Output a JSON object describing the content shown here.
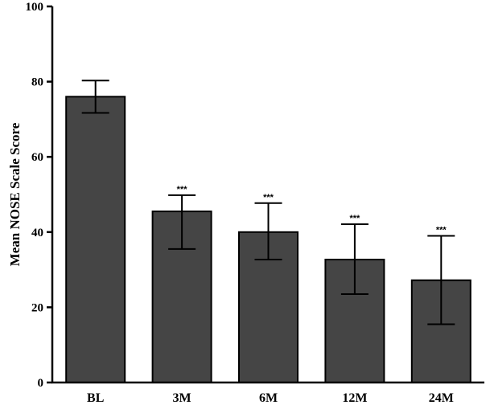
{
  "chart_data": {
    "type": "bar",
    "title": "",
    "xlabel": "",
    "ylabel": "Mean NOSE  Scale  Score",
    "ylim": [
      0,
      100
    ],
    "yticks": [
      0,
      20,
      40,
      60,
      80,
      100
    ],
    "grid": false,
    "categories": [
      "BL",
      "3M",
      "6M",
      "12M",
      "24M"
    ],
    "values": [
      76,
      45.5,
      40,
      32.7,
      27.2
    ],
    "error_upper": [
      80.3,
      49.8,
      47.7,
      42.1,
      39
    ],
    "error_lower": [
      71.7,
      35.5,
      32.7,
      23.5,
      15.5
    ],
    "significance": [
      "",
      "***",
      "***",
      "***",
      "***"
    ],
    "colors": {
      "bar_fill": "#454545",
      "bar_stroke": "#000000",
      "axis": "#000000"
    }
  }
}
